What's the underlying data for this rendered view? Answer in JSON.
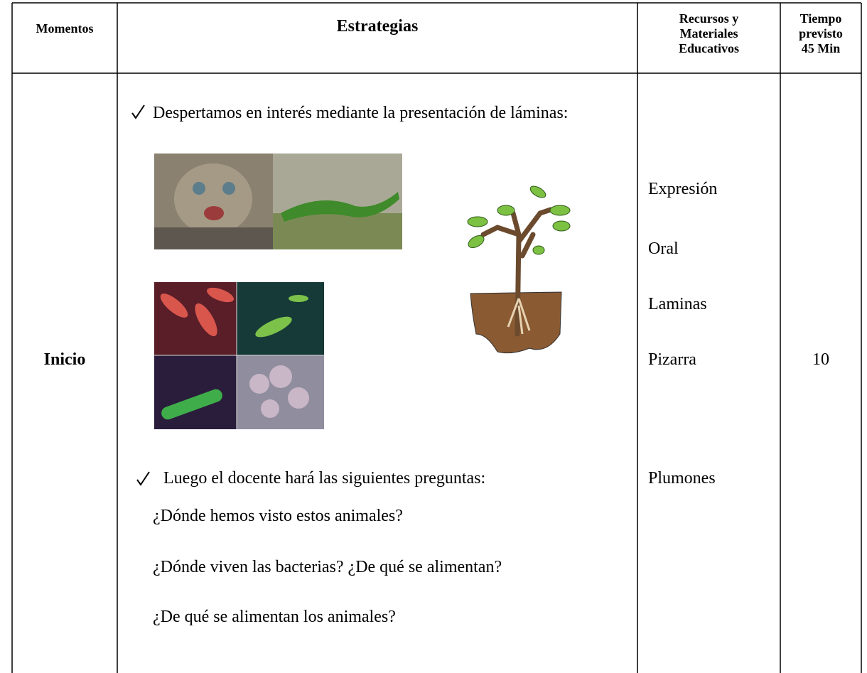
{
  "table": {
    "header": {
      "momentos": "Momentos",
      "estrategias": "Estrategias",
      "recursos": [
        "Recursos y",
        "Materiales",
        "Educativos"
      ],
      "tiempo": [
        "Tiempo",
        "previsto",
        "45 Min"
      ]
    },
    "row": {
      "momento": "Inicio",
      "strategies": {
        "item1": "Despertamos en interés mediante la presentación de láminas:",
        "item2": "Luego el docente hará las siguientes preguntas:",
        "questions": [
          "¿Dónde hemos visto estos animales?",
          "¿Dónde viven las bacterias? ¿De qué se alimentan?",
          "¿De qué se alimentan los animales?"
        ]
      },
      "recursos": [
        "Expresión",
        "Oral",
        "Laminas",
        "Pizarra",
        "Plumones"
      ],
      "tiempo": "10"
    }
  }
}
